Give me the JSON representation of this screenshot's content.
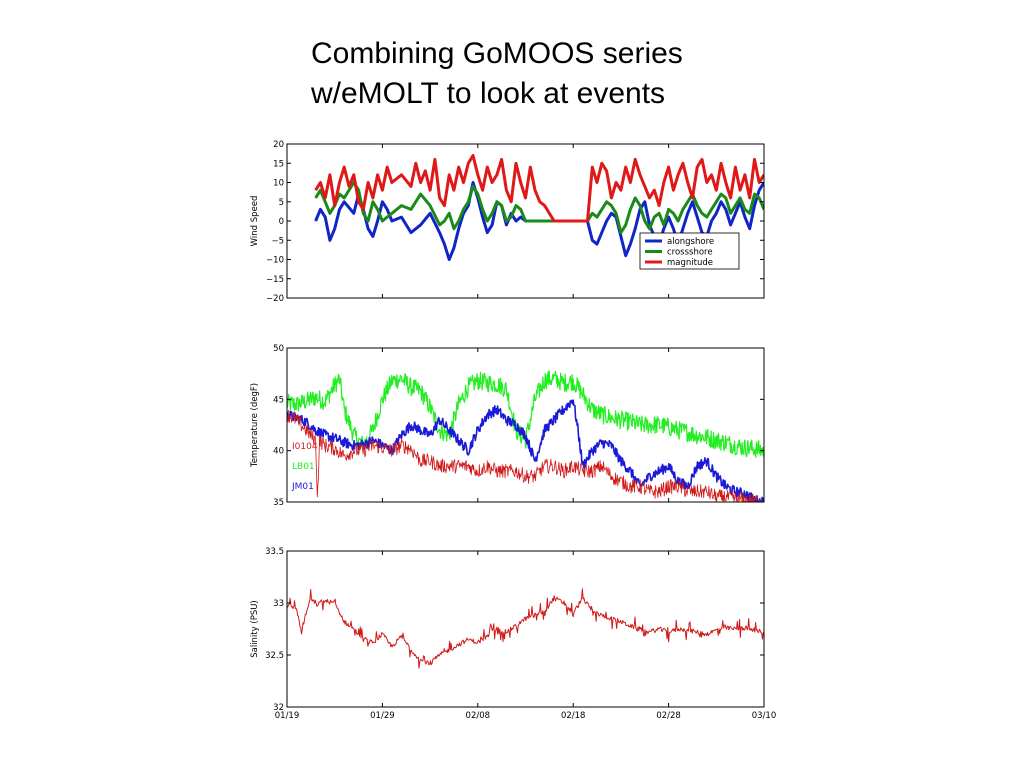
{
  "title": {
    "line1": "Combining GoMOOS series",
    "line2": "w/eMOLT to look at events"
  },
  "chart_data": [
    {
      "type": "line",
      "ylabel": "Wind Speed",
      "ylim": [
        -20,
        20
      ],
      "yticks": [
        20,
        15,
        10,
        5,
        0,
        -5,
        -10,
        -15,
        -20
      ],
      "xlim": [
        0,
        50
      ],
      "legend": {
        "placement": "lower-right",
        "entries": [
          "alongshore",
          "crossshore",
          "magnitude"
        ]
      },
      "series": [
        {
          "name": "alongshore",
          "color": "#1024c8",
          "x": [
            3,
            3.5,
            4,
            4.5,
            5,
            5.5,
            6,
            7,
            7.5,
            8,
            8.5,
            9,
            9.5,
            10,
            10.5,
            11,
            12,
            13,
            14,
            15,
            16,
            16.5,
            17,
            17.5,
            18,
            18.5,
            19,
            19.5,
            20,
            20.5,
            21,
            21.5,
            22,
            22.5,
            23,
            23.5,
            24,
            24.5,
            25,
            25.5,
            26,
            26.5,
            27,
            28,
            29,
            30,
            31,
            31.5,
            32,
            32.5,
            33,
            33.5,
            34,
            34.5,
            35,
            35.5,
            36,
            36.5,
            37,
            37.5,
            38,
            38.5,
            39,
            39.5,
            40,
            40.5,
            41,
            41.5,
            42,
            42.5,
            43,
            43.5,
            44,
            44.5,
            45,
            45.5,
            46,
            46.5,
            47,
            47.5,
            48,
            48.5,
            49,
            49.5,
            50
          ],
          "y": [
            0,
            3,
            1,
            -5,
            -2,
            3,
            5,
            2,
            7,
            3,
            -2,
            -4,
            0,
            5,
            3,
            0,
            1,
            -3,
            -1,
            2,
            -3,
            -6,
            -10,
            -7,
            -2,
            2,
            4,
            10,
            6,
            1,
            -3,
            -1,
            5,
            4,
            -1,
            2,
            0,
            1,
            0,
            0,
            0,
            0,
            0,
            0,
            0,
            0,
            0,
            0,
            -5,
            -6,
            -3,
            0,
            2,
            1,
            -4,
            -9,
            -6,
            -2,
            3,
            5,
            -1,
            -4,
            -6,
            -2,
            1,
            -2,
            -6,
            -2,
            2,
            5,
            1,
            -3,
            -4,
            0,
            2,
            5,
            3,
            -1,
            2,
            5,
            1,
            -2,
            4,
            8,
            10
          ]
        },
        {
          "name": "crossshore",
          "color": "#1a8a1a",
          "x": [
            3,
            3.5,
            4,
            4.5,
            5,
            5.5,
            6,
            7,
            7.5,
            8,
            8.5,
            9,
            9.5,
            10,
            10.5,
            11,
            12,
            13,
            14,
            15,
            16,
            16.5,
            17,
            17.5,
            18,
            18.5,
            19,
            19.5,
            20,
            20.5,
            21,
            21.5,
            22,
            22.5,
            23,
            23.5,
            24,
            24.5,
            25,
            25.5,
            26,
            26.5,
            27,
            28,
            29,
            30,
            31,
            31.5,
            32,
            32.5,
            33,
            33.5,
            34,
            34.5,
            35,
            35.5,
            36,
            36.5,
            37,
            37.5,
            38,
            38.5,
            39,
            39.5,
            40,
            40.5,
            41,
            41.5,
            42,
            42.5,
            43,
            43.5,
            44,
            44.5,
            45,
            45.5,
            46,
            46.5,
            47,
            47.5,
            48,
            48.5,
            49,
            49.5,
            50
          ],
          "y": [
            6,
            8,
            5,
            2,
            4,
            7,
            6,
            10,
            8,
            2,
            0,
            5,
            3,
            0,
            1,
            2,
            4,
            3,
            7,
            4,
            -1,
            0,
            2,
            -2,
            0,
            3,
            5,
            9,
            7,
            3,
            0,
            2,
            5,
            4,
            0,
            1,
            4,
            3,
            0,
            0,
            0,
            0,
            0,
            0,
            0,
            0,
            0,
            0,
            2,
            1,
            3,
            5,
            4,
            2,
            -3,
            -1,
            3,
            6,
            4,
            0,
            -2,
            1,
            2,
            -1,
            3,
            2,
            0,
            3,
            5,
            7,
            4,
            2,
            1,
            3,
            5,
            7,
            6,
            2,
            4,
            6,
            3,
            2,
            7,
            6,
            3
          ]
        },
        {
          "name": "magnitude",
          "color": "#e01818",
          "x": [
            3,
            3.5,
            4,
            4.5,
            5,
            5.5,
            6,
            6.5,
            7,
            7.5,
            8,
            8.5,
            9,
            9.5,
            10,
            10.5,
            11,
            12,
            13,
            13.5,
            14,
            14.5,
            15,
            15.5,
            16,
            16.5,
            17,
            17.5,
            18,
            18.5,
            19,
            19.5,
            20,
            20.5,
            21,
            21.5,
            22,
            22.5,
            23,
            23.5,
            24,
            24.5,
            25,
            25.5,
            26,
            26.5,
            27,
            28,
            29,
            30,
            31,
            31.5,
            32,
            32.5,
            33,
            33.5,
            34,
            34.5,
            35,
            35.5,
            36,
            36.5,
            37,
            37.5,
            38,
            38.5,
            39,
            39.5,
            40,
            40.5,
            41,
            41.5,
            42,
            42.5,
            43,
            43.5,
            44,
            44.5,
            45,
            45.5,
            46,
            46.5,
            47,
            47.5,
            48,
            48.5,
            49,
            49.5,
            50
          ],
          "y": [
            8,
            10,
            6,
            12,
            4,
            10,
            14,
            9,
            12,
            5,
            3,
            10,
            6,
            12,
            8,
            14,
            10,
            12,
            9,
            15,
            10,
            13,
            8,
            16,
            6,
            4,
            12,
            8,
            14,
            10,
            15,
            17,
            12,
            8,
            14,
            10,
            12,
            16,
            8,
            5,
            15,
            10,
            6,
            14,
            8,
            5,
            4,
            0,
            0,
            0,
            0,
            0,
            14,
            10,
            15,
            13,
            6,
            10,
            8,
            14,
            10,
            16,
            12,
            9,
            6,
            8,
            4,
            10,
            14,
            8,
            12,
            15,
            10,
            6,
            14,
            16,
            10,
            12,
            8,
            15,
            10,
            6,
            14,
            8,
            12,
            6,
            16,
            10,
            12
          ]
        }
      ]
    },
    {
      "type": "line",
      "ylabel": "Temperature (degF)",
      "ylim": [
        35,
        50
      ],
      "yticks": [
        50,
        45,
        40,
        35
      ],
      "xlim": [
        0,
        50
      ],
      "legend": {
        "placement": "left",
        "entries": [
          "I0104",
          "LB01",
          "JM01"
        ]
      },
      "series": [
        {
          "name": "LB01",
          "color": "#22ee22",
          "x": [
            0,
            1,
            2,
            3,
            4,
            5,
            5.5,
            6,
            7,
            8,
            9,
            10,
            11,
            12,
            13,
            14,
            15,
            16,
            17,
            18,
            19,
            20,
            21,
            22,
            23,
            24,
            25,
            26,
            27,
            28,
            29,
            30,
            31,
            32,
            33,
            34,
            35,
            36,
            37,
            38,
            39,
            40,
            41,
            42,
            43,
            44,
            45,
            46,
            47,
            48,
            49,
            50
          ],
          "y": [
            44.6,
            44.5,
            44.8,
            45.2,
            44.8,
            46.4,
            47.0,
            44.0,
            41.5,
            40.5,
            42.0,
            45.0,
            46.8,
            47.0,
            46.2,
            45.8,
            44.2,
            42.0,
            41.5,
            44.5,
            46.2,
            46.8,
            46.6,
            46.5,
            46.0,
            42.0,
            41.0,
            45.0,
            46.9,
            47.0,
            46.6,
            46.8,
            45.5,
            44.0,
            43.5,
            43.2,
            43.0,
            42.8,
            42.5,
            42.5,
            42.5,
            42.3,
            42.0,
            41.8,
            41.5,
            41.3,
            41.0,
            40.8,
            40.5,
            40.3,
            40.2,
            40.0
          ],
          "band": 1.8
        },
        {
          "name": "JM01",
          "color": "#1a1ad8",
          "x": [
            0,
            1,
            2,
            3,
            4,
            5,
            6,
            7,
            8,
            9,
            10,
            11,
            12,
            13,
            14,
            15,
            16,
            17,
            18,
            19,
            20,
            21,
            22,
            23,
            24,
            25,
            26,
            27,
            28,
            29,
            30,
            30.5,
            31,
            32,
            33,
            34,
            35,
            36,
            37,
            38,
            39,
            40,
            41,
            42,
            43,
            44,
            45,
            46,
            47,
            48,
            49,
            50
          ],
          "y": [
            43.5,
            43.2,
            42.8,
            42.0,
            41.5,
            41.2,
            40.8,
            40.5,
            40.6,
            41.0,
            40.5,
            40.0,
            41.5,
            42.5,
            42.0,
            41.5,
            43.0,
            42.0,
            41.0,
            40.0,
            42.0,
            43.5,
            44.0,
            43.0,
            42.5,
            41.5,
            39.0,
            42.0,
            43.0,
            44.0,
            45.0,
            42.0,
            38.5,
            40.0,
            40.8,
            40.5,
            39.0,
            38.0,
            36.5,
            37.5,
            38.0,
            38.5,
            37.0,
            36.5,
            38.5,
            39.0,
            37.5,
            36.5,
            36.0,
            35.8,
            35.2,
            35.0
          ],
          "band": 1.0
        },
        {
          "name": "I0104",
          "color": "#d01818",
          "x": [
            0,
            1,
            2,
            3,
            3.2,
            3.4,
            4,
            5,
            6,
            7,
            8,
            9,
            10,
            11,
            12,
            13,
            14,
            15,
            16,
            17,
            18,
            19,
            20,
            21,
            22,
            23,
            24,
            25,
            26,
            27,
            28,
            29,
            30,
            31,
            32,
            33,
            34,
            35,
            36,
            37,
            38,
            39,
            40,
            41,
            42,
            43,
            44,
            45,
            46,
            47,
            48,
            49,
            50
          ],
          "y": [
            43.5,
            43.0,
            42.0,
            41.0,
            35.2,
            41.0,
            40.5,
            40.2,
            39.5,
            40.0,
            40.0,
            40.5,
            40.3,
            40.0,
            40.5,
            40.2,
            39.0,
            39.0,
            38.5,
            38.5,
            38.5,
            38.5,
            38.0,
            38.5,
            38.0,
            38.0,
            38.0,
            37.5,
            37.5,
            38.5,
            38.5,
            38.0,
            38.5,
            38.0,
            38.0,
            38.5,
            37.5,
            37.0,
            36.5,
            36.5,
            36.0,
            36.0,
            36.5,
            36.5,
            36.0,
            36.0,
            36.0,
            35.5,
            35.5,
            35.3,
            35.2,
            35.1,
            35.0
          ],
          "band": 1.4
        }
      ]
    },
    {
      "type": "line",
      "ylabel": "Salinity (PSU)",
      "ylim": [
        32,
        33.5
      ],
      "yticks": [
        33.5,
        33,
        32.5,
        32
      ],
      "xlim": [
        0,
        50
      ],
      "xticks": [
        0,
        10,
        20,
        30,
        40,
        50
      ],
      "xticklabels": [
        "01/19",
        "01/29",
        "02/08",
        "02/18",
        "02/28",
        "03/10"
      ],
      "series": [
        {
          "name": "",
          "color": "#d01818",
          "x": [
            0,
            1,
            1.5,
            2,
            2.5,
            3,
            4,
            5,
            6,
            7,
            8,
            9,
            10,
            11,
            12,
            13,
            14,
            15,
            16,
            17,
            18,
            19,
            20,
            21,
            22,
            23,
            24,
            25,
            26,
            27,
            28,
            29,
            30,
            31,
            32,
            33,
            34,
            35,
            36,
            37,
            38,
            39,
            40,
            41,
            42,
            43,
            44,
            45,
            46,
            47,
            48,
            49,
            50
          ],
          "y": [
            32.98,
            32.95,
            32.72,
            32.9,
            33.05,
            32.98,
            33.02,
            33.0,
            32.82,
            32.75,
            32.65,
            32.62,
            32.7,
            32.58,
            32.68,
            32.55,
            32.45,
            32.42,
            32.5,
            32.55,
            32.6,
            32.65,
            32.62,
            32.68,
            32.75,
            32.72,
            32.78,
            32.85,
            32.88,
            32.92,
            33.05,
            33.0,
            32.9,
            33.05,
            32.92,
            32.88,
            32.85,
            32.82,
            32.78,
            32.75,
            32.72,
            32.75,
            32.72,
            32.75,
            32.74,
            32.72,
            32.7,
            32.74,
            32.76,
            32.75,
            32.76,
            32.74,
            32.72
          ],
          "noise": 0.07
        }
      ]
    }
  ]
}
